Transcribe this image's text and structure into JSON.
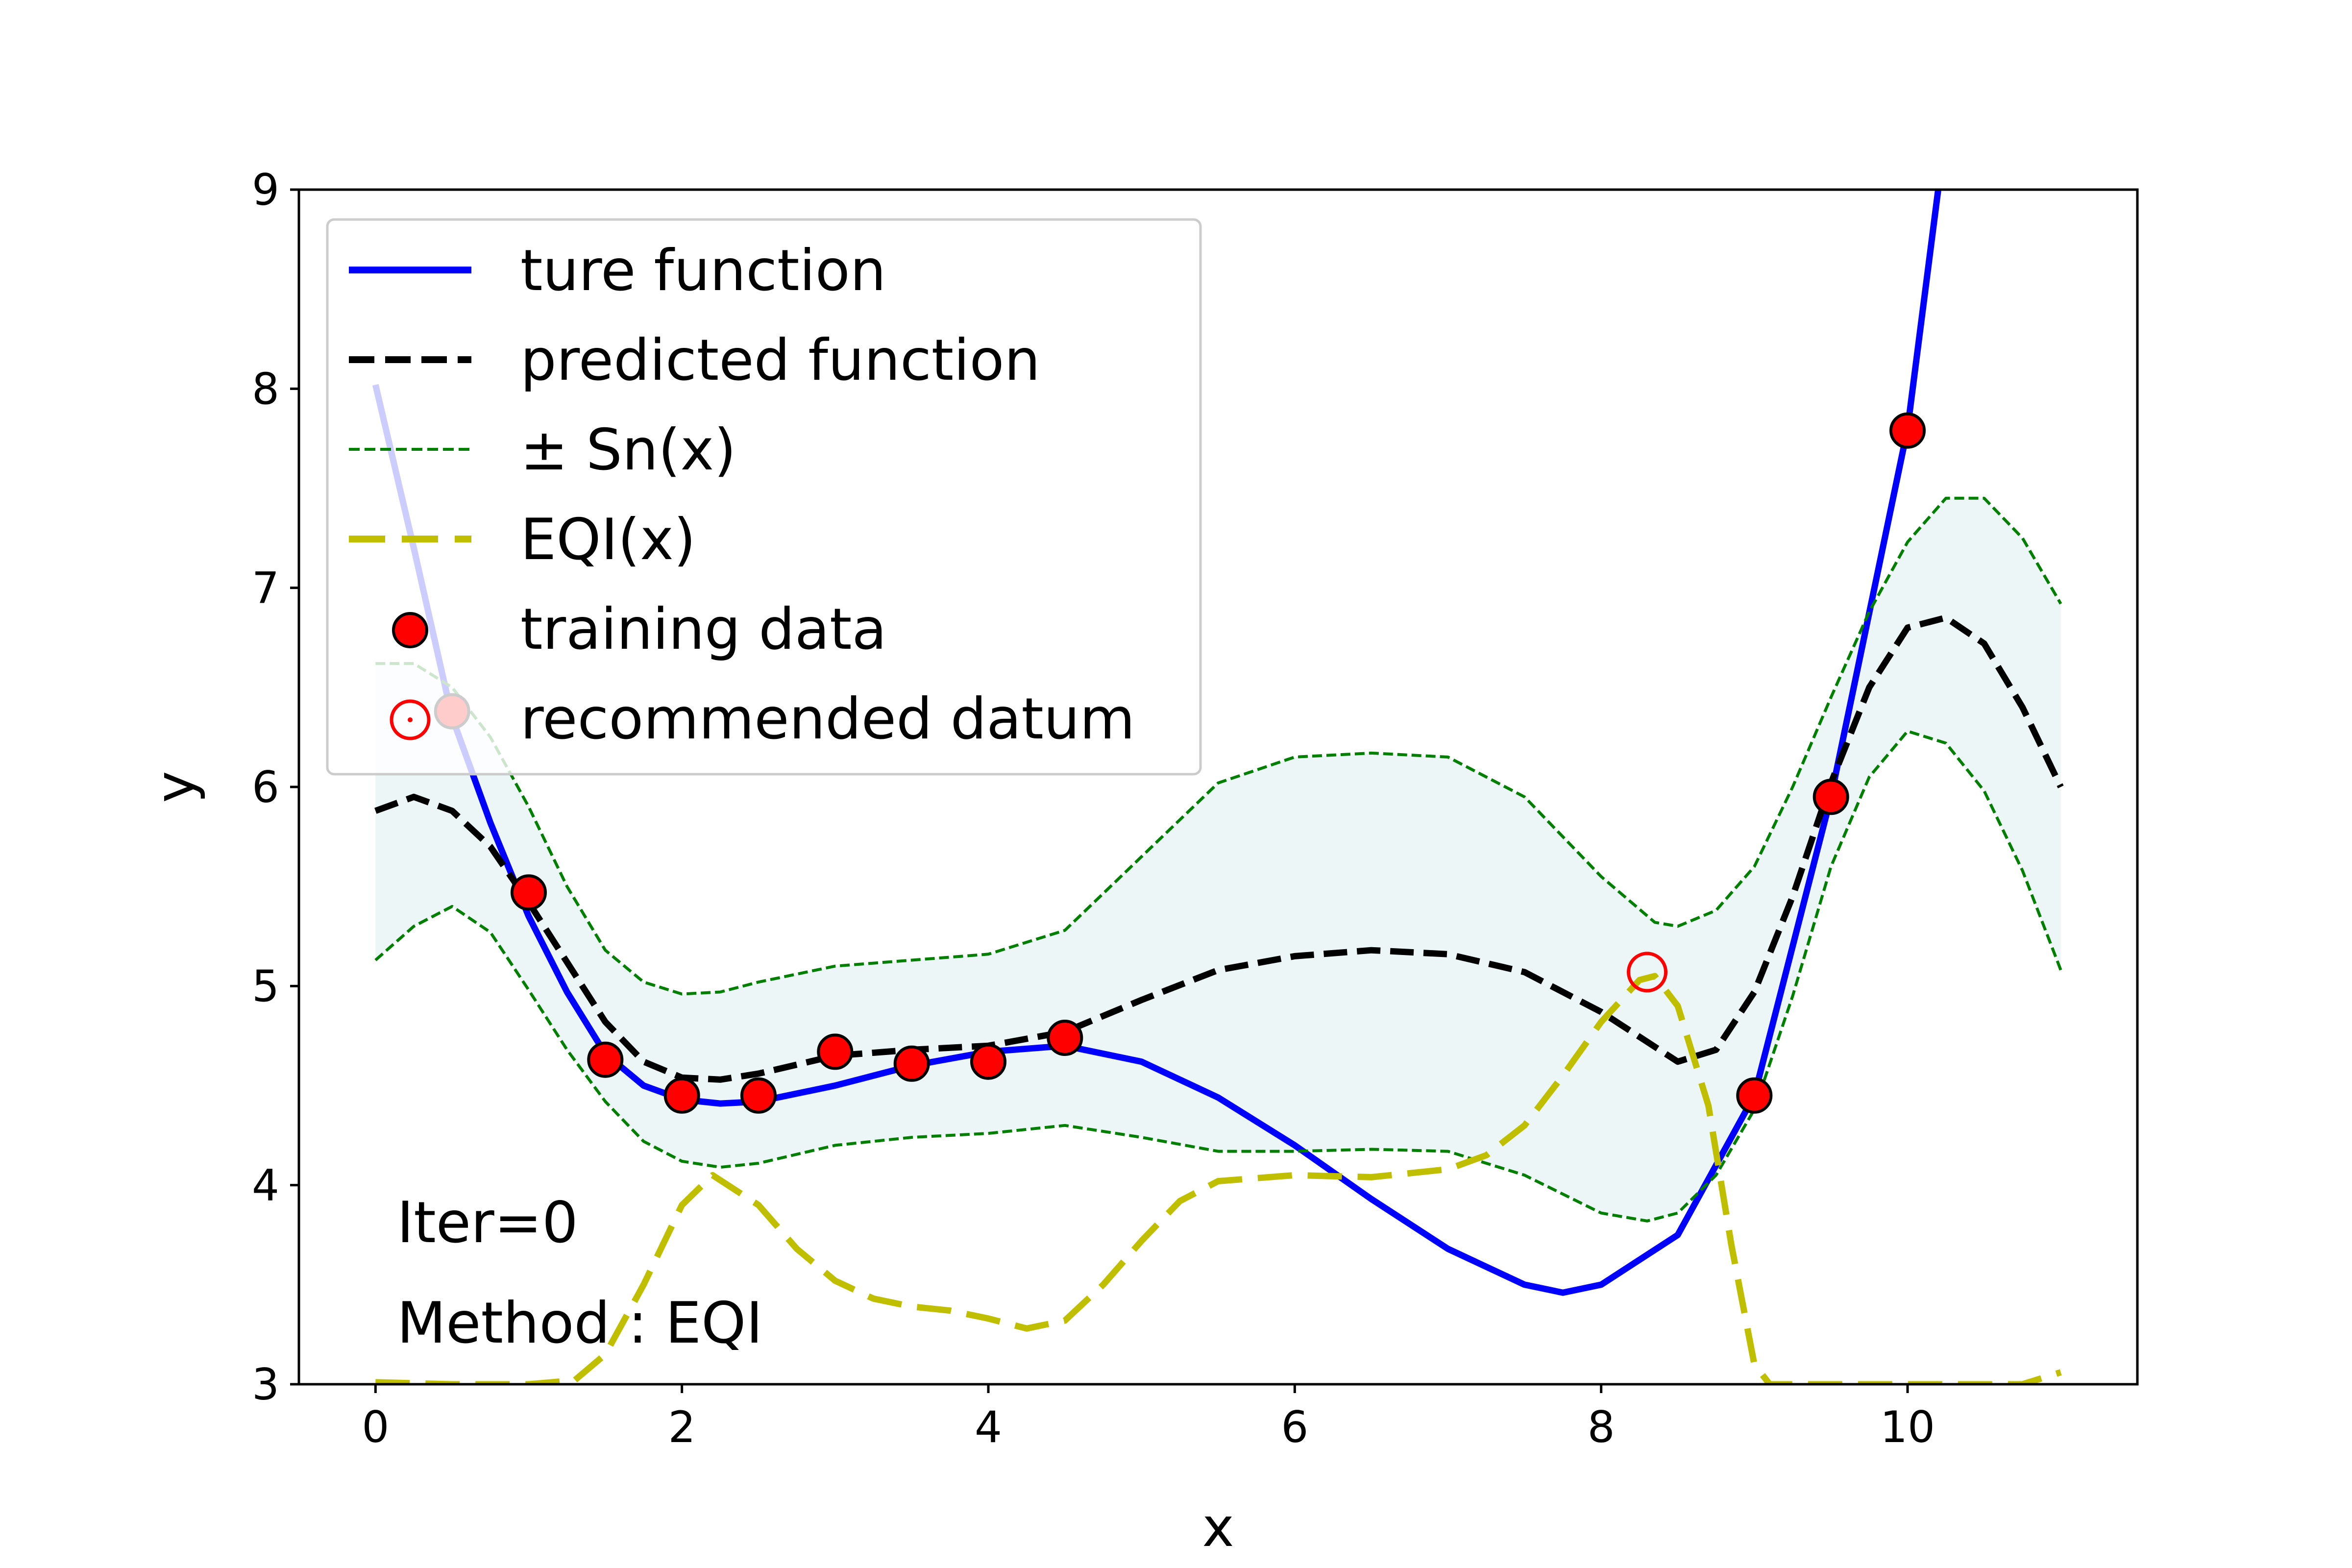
{
  "chart_data": {
    "type": "line",
    "title": "",
    "xlabel": "x",
    "ylabel": "y",
    "xlim": [
      -0.5,
      11.5
    ],
    "ylim": [
      3,
      9
    ],
    "xticks": [
      "0",
      "2",
      "4",
      "6",
      "8",
      "10"
    ],
    "yticks": [
      "3",
      "4",
      "5",
      "6",
      "7",
      "8",
      "9"
    ],
    "grid": false,
    "legend_placement": "upper-left",
    "annotations": [
      "Iter=0",
      "Method : EQI"
    ],
    "series": [
      {
        "name": "ture function",
        "style": "solid",
        "color": "#0000ff",
        "points": [
          [
            0,
            8.02
          ],
          [
            0.25,
            7.2
          ],
          [
            0.5,
            6.35
          ],
          [
            0.75,
            5.82
          ],
          [
            1.0,
            5.35
          ],
          [
            1.25,
            4.97
          ],
          [
            1.5,
            4.66
          ],
          [
            1.75,
            4.5
          ],
          [
            2.0,
            4.43
          ],
          [
            2.25,
            4.41
          ],
          [
            2.5,
            4.42
          ],
          [
            3.0,
            4.5
          ],
          [
            3.5,
            4.6
          ],
          [
            4.0,
            4.67
          ],
          [
            4.5,
            4.7
          ],
          [
            5.0,
            4.62
          ],
          [
            5.5,
            4.44
          ],
          [
            6.0,
            4.2
          ],
          [
            6.5,
            3.93
          ],
          [
            7.0,
            3.68
          ],
          [
            7.5,
            3.5
          ],
          [
            7.75,
            3.46
          ],
          [
            8.0,
            3.5
          ],
          [
            8.5,
            3.75
          ],
          [
            9.0,
            4.45
          ],
          [
            9.5,
            5.95
          ],
          [
            10.0,
            7.8
          ],
          [
            10.2,
            9.0
          ]
        ]
      },
      {
        "name": "predicted function",
        "style": "dashed",
        "color": "#000000",
        "points": [
          [
            0,
            5.88
          ],
          [
            0.25,
            5.95
          ],
          [
            0.5,
            5.88
          ],
          [
            0.75,
            5.7
          ],
          [
            1.0,
            5.42
          ],
          [
            1.25,
            5.12
          ],
          [
            1.5,
            4.82
          ],
          [
            1.75,
            4.62
          ],
          [
            2.0,
            4.54
          ],
          [
            2.25,
            4.53
          ],
          [
            2.5,
            4.56
          ],
          [
            3.0,
            4.65
          ],
          [
            3.5,
            4.68
          ],
          [
            4.0,
            4.7
          ],
          [
            4.5,
            4.77
          ],
          [
            5.0,
            4.93
          ],
          [
            5.5,
            5.08
          ],
          [
            6.0,
            5.15
          ],
          [
            6.5,
            5.18
          ],
          [
            7.0,
            5.16
          ],
          [
            7.5,
            5.07
          ],
          [
            8.0,
            4.87
          ],
          [
            8.3,
            4.72
          ],
          [
            8.5,
            4.62
          ],
          [
            8.75,
            4.68
          ],
          [
            9.0,
            4.97
          ],
          [
            9.25,
            5.45
          ],
          [
            9.5,
            6.02
          ],
          [
            9.75,
            6.5
          ],
          [
            10.0,
            6.8
          ],
          [
            10.25,
            6.85
          ],
          [
            10.5,
            6.72
          ],
          [
            10.75,
            6.4
          ],
          [
            11.0,
            6.0
          ]
        ]
      },
      {
        "name": " ± Sn(x)",
        "style": "dotted-thin",
        "color": "#007f00",
        "upper": [
          [
            0,
            6.62
          ],
          [
            0.25,
            6.62
          ],
          [
            0.5,
            6.5
          ],
          [
            0.75,
            6.25
          ],
          [
            1.0,
            5.9
          ],
          [
            1.25,
            5.5
          ],
          [
            1.5,
            5.18
          ],
          [
            1.75,
            5.02
          ],
          [
            2.0,
            4.96
          ],
          [
            2.25,
            4.97
          ],
          [
            2.5,
            5.02
          ],
          [
            3.0,
            5.1
          ],
          [
            3.5,
            5.13
          ],
          [
            4.0,
            5.16
          ],
          [
            4.5,
            5.28
          ],
          [
            5.0,
            5.65
          ],
          [
            5.5,
            6.02
          ],
          [
            6.0,
            6.15
          ],
          [
            6.5,
            6.17
          ],
          [
            7.0,
            6.15
          ],
          [
            7.5,
            5.95
          ],
          [
            8.0,
            5.55
          ],
          [
            8.35,
            5.32
          ],
          [
            8.5,
            5.3
          ],
          [
            8.75,
            5.38
          ],
          [
            9.0,
            5.6
          ],
          [
            9.25,
            6.0
          ],
          [
            9.5,
            6.45
          ],
          [
            9.75,
            6.88
          ],
          [
            10.0,
            7.23
          ],
          [
            10.25,
            7.45
          ],
          [
            10.5,
            7.45
          ],
          [
            10.75,
            7.25
          ],
          [
            11.0,
            6.92
          ]
        ],
        "lower": [
          [
            0,
            5.13
          ],
          [
            0.25,
            5.3
          ],
          [
            0.5,
            5.4
          ],
          [
            0.75,
            5.27
          ],
          [
            1.0,
            4.98
          ],
          [
            1.25,
            4.68
          ],
          [
            1.5,
            4.42
          ],
          [
            1.75,
            4.22
          ],
          [
            2.0,
            4.12
          ],
          [
            2.25,
            4.09
          ],
          [
            2.5,
            4.11
          ],
          [
            3.0,
            4.2
          ],
          [
            3.5,
            4.24
          ],
          [
            4.0,
            4.26
          ],
          [
            4.5,
            4.3
          ],
          [
            5.0,
            4.24
          ],
          [
            5.5,
            4.17
          ],
          [
            6.0,
            4.17
          ],
          [
            6.5,
            4.18
          ],
          [
            7.0,
            4.17
          ],
          [
            7.5,
            4.05
          ],
          [
            8.0,
            3.86
          ],
          [
            8.3,
            3.82
          ],
          [
            8.5,
            3.86
          ],
          [
            8.75,
            4.05
          ],
          [
            9.0,
            4.38
          ],
          [
            9.25,
            4.95
          ],
          [
            9.5,
            5.6
          ],
          [
            9.75,
            6.05
          ],
          [
            10.0,
            6.28
          ],
          [
            10.25,
            6.22
          ],
          [
            10.5,
            5.98
          ],
          [
            10.75,
            5.58
          ],
          [
            11.0,
            5.08
          ]
        ]
      },
      {
        "name": "EQI(x)",
        "style": "dashed-long",
        "color": "#bfbf00",
        "points": [
          [
            0,
            3.01
          ],
          [
            0.5,
            3.0
          ],
          [
            1.0,
            3.0
          ],
          [
            1.3,
            3.02
          ],
          [
            1.5,
            3.15
          ],
          [
            1.75,
            3.5
          ],
          [
            2.0,
            3.9
          ],
          [
            2.2,
            4.05
          ],
          [
            2.5,
            3.9
          ],
          [
            2.75,
            3.68
          ],
          [
            3.0,
            3.52
          ],
          [
            3.25,
            3.43
          ],
          [
            3.5,
            3.39
          ],
          [
            3.75,
            3.37
          ],
          [
            4.0,
            3.33
          ],
          [
            4.25,
            3.28
          ],
          [
            4.5,
            3.32
          ],
          [
            4.75,
            3.5
          ],
          [
            5.0,
            3.72
          ],
          [
            5.25,
            3.92
          ],
          [
            5.5,
            4.02
          ],
          [
            6.0,
            4.05
          ],
          [
            6.5,
            4.04
          ],
          [
            7.0,
            4.08
          ],
          [
            7.25,
            4.15
          ],
          [
            7.5,
            4.3
          ],
          [
            7.75,
            4.55
          ],
          [
            8.0,
            4.82
          ],
          [
            8.25,
            5.03
          ],
          [
            8.35,
            5.05
          ],
          [
            8.5,
            4.9
          ],
          [
            8.7,
            4.4
          ],
          [
            8.85,
            3.7
          ],
          [
            9.0,
            3.1
          ],
          [
            9.1,
            3.0
          ],
          [
            9.5,
            3.0
          ],
          [
            10.0,
            3.0
          ],
          [
            10.5,
            3.0
          ],
          [
            10.75,
            3.0
          ],
          [
            11.0,
            3.06
          ]
        ]
      }
    ],
    "training_data": {
      "name": "training data",
      "color": "#ff0000",
      "points": [
        [
          0.5,
          6.38
        ],
        [
          1.0,
          5.47
        ],
        [
          1.5,
          4.63
        ],
        [
          2.0,
          4.45
        ],
        [
          2.5,
          4.45
        ],
        [
          3.0,
          4.67
        ],
        [
          3.5,
          4.61
        ],
        [
          4.0,
          4.62
        ],
        [
          4.5,
          4.74
        ],
        [
          9.0,
          4.45
        ],
        [
          9.5,
          5.95
        ],
        [
          10.0,
          7.79
        ]
      ]
    },
    "recommended_datum": {
      "name": "recommended datum",
      "color": "#ff0000",
      "points": [
        [
          8.3,
          5.07
        ]
      ]
    },
    "band_color": "#e0f0f2"
  }
}
